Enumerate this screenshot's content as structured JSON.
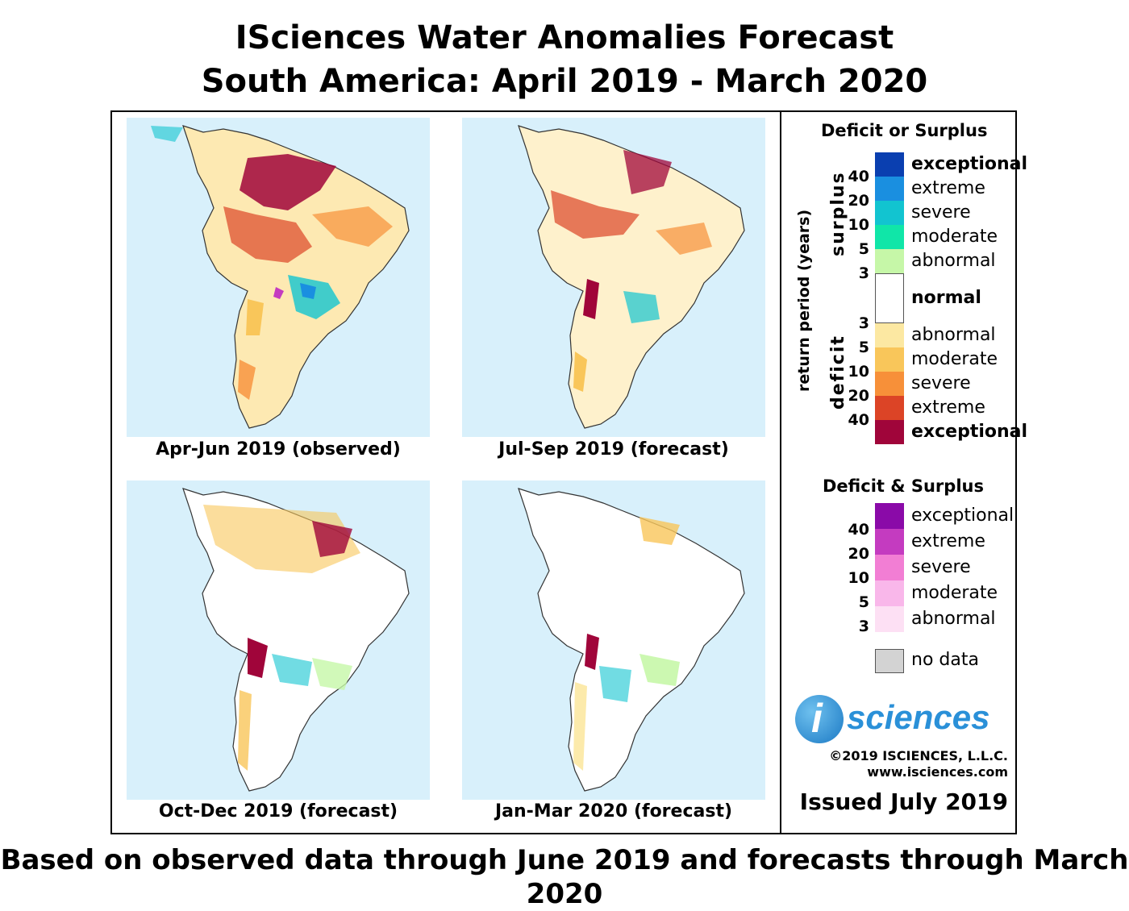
{
  "title_line1": "ISciences Water Anomalies Forecast",
  "title_line2": "South America: April 2019 - March 2020",
  "maps": [
    {
      "caption": "Apr-Jun 2019 (observed)"
    },
    {
      "caption": "Jul-Sep 2019 (forecast)"
    },
    {
      "caption": "Oct-Dec 2019 (forecast)"
    },
    {
      "caption": "Jan-Mar 2020 (forecast)"
    }
  ],
  "legend": {
    "deficit_or_surplus_title": "Deficit or Surplus",
    "axis_label": "return period (years)",
    "surplus_label": "surplus",
    "deficit_label": "deficit",
    "surplus_classes": [
      {
        "label": "exceptional",
        "color": "#0a3fb0"
      },
      {
        "label": "extreme",
        "color": "#1a8fe0"
      },
      {
        "label": "severe",
        "color": "#12c4d0"
      },
      {
        "label": "moderate",
        "color": "#10e6a8"
      },
      {
        "label": "abnormal",
        "color": "#c6f7a8"
      }
    ],
    "normal_label": "normal",
    "deficit_classes": [
      {
        "label": "abnormal",
        "color": "#fce8a2"
      },
      {
        "label": "moderate",
        "color": "#f9c65a"
      },
      {
        "label": "severe",
        "color": "#f79039"
      },
      {
        "label": "extreme",
        "color": "#dc4426"
      },
      {
        "label": "exceptional",
        "color": "#a0053a"
      }
    ],
    "surplus_ticks": [
      "40",
      "20",
      "10",
      "5",
      "3"
    ],
    "deficit_ticks": [
      "3",
      "5",
      "10",
      "20",
      "40"
    ],
    "deficit_and_surplus_title": "Deficit & Surplus",
    "both_classes": [
      {
        "label": "exceptional",
        "color": "#8a0aa8"
      },
      {
        "label": "extreme",
        "color": "#c43bc0"
      },
      {
        "label": "severe",
        "color": "#f27ed4"
      },
      {
        "label": "moderate",
        "color": "#f9b7ea"
      },
      {
        "label": "abnormal",
        "color": "#fde0f4"
      }
    ],
    "both_ticks": [
      "40",
      "20",
      "10",
      "5",
      "3"
    ],
    "no_data_label": "no data",
    "no_data_color": "#d3d3d3"
  },
  "brand": {
    "logo_letter": "i",
    "logo_word": "sciences",
    "copyright": "©2019 ISCIENCES, L.L.C.",
    "website": "www.isciences.com",
    "issued": "Issued July 2019"
  },
  "footer": "Based on observed data through June 2019 and forecasts through March 2020"
}
